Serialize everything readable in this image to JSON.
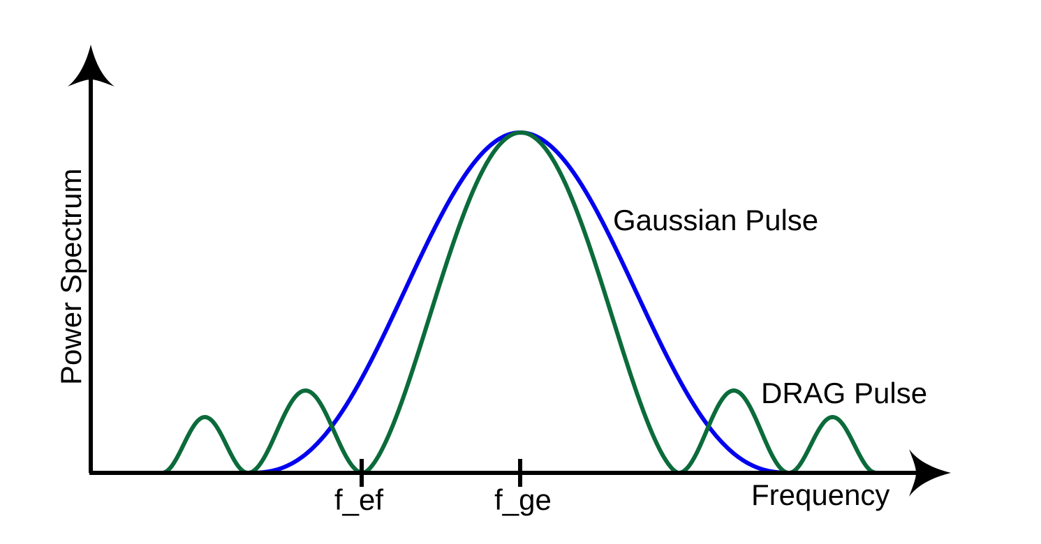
{
  "axes": {
    "xlabel": "Frequency",
    "ylabel": "Power Spectrum",
    "color": "#000000"
  },
  "ticks": [
    {
      "label": "f_ef"
    },
    {
      "label": "f_ge"
    }
  ],
  "curves": {
    "gaussian": {
      "label": "Gaussian Pulse",
      "color": "#0000ee"
    },
    "drag": {
      "label": "DRAG Pulse",
      "color": "#0b6b3a"
    }
  }
}
